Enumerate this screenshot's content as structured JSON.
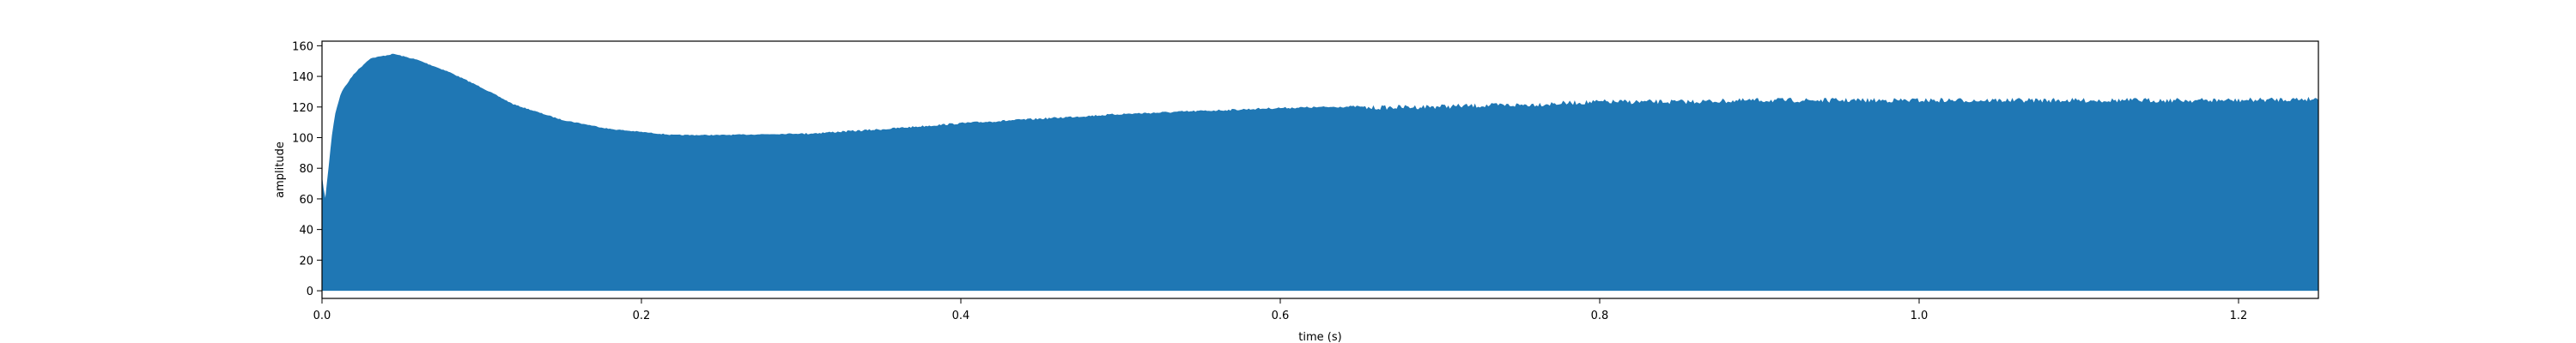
{
  "chart_data": {
    "type": "area",
    "title": "",
    "xlabel": "time (s)",
    "ylabel": "amplitude",
    "xlim": [
      0,
      1.25
    ],
    "ylim": [
      -5,
      163
    ],
    "xticks": [
      0.0,
      0.2,
      0.4,
      0.6,
      0.8,
      1.0,
      1.2
    ],
    "xtick_labels": [
      "0.0",
      "0.2",
      "0.4",
      "0.6",
      "0.8",
      "1.0",
      "1.2"
    ],
    "yticks": [
      0,
      20,
      40,
      60,
      80,
      100,
      120,
      140,
      160
    ],
    "ytick_labels": [
      "0",
      "20",
      "40",
      "60",
      "80",
      "100",
      "120",
      "140",
      "160"
    ],
    "grid": false,
    "legend": false,
    "series_color": "#1f77b4",
    "envelope": {
      "x": [
        0.0,
        0.002,
        0.004,
        0.006,
        0.008,
        0.012,
        0.02,
        0.03,
        0.045,
        0.06,
        0.08,
        0.1,
        0.12,
        0.15,
        0.18,
        0.2,
        0.22,
        0.25,
        0.3,
        0.35,
        0.4,
        0.45,
        0.5,
        0.55,
        0.6,
        0.65,
        0.7,
        0.75,
        0.8,
        0.85,
        0.9,
        0.95,
        1.0,
        1.05,
        1.1,
        1.15,
        1.2,
        1.25
      ],
      "y": [
        75,
        60,
        80,
        100,
        115,
        130,
        142,
        152,
        155,
        151,
        143,
        133,
        122,
        112,
        106,
        104,
        102,
        102,
        103,
        106,
        110,
        113,
        116,
        118,
        120,
        121,
        122,
        123,
        125,
        125,
        126,
        126,
        126,
        126,
        126,
        126,
        126,
        127
      ]
    }
  }
}
